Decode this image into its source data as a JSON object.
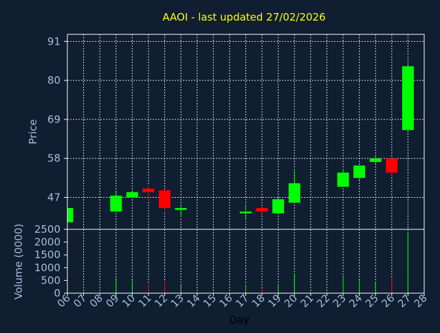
{
  "chart_data": {
    "type": "candlestick",
    "title": "AAOI - last updated 27/02/2026",
    "ylabel": "Price",
    "volume_label": "Volume (0000)",
    "xlabel": "Day",
    "ylim": [
      38,
      93
    ],
    "yticks": [
      47,
      58,
      69,
      80,
      91
    ],
    "volume_ylim": [
      0,
      2500
    ],
    "volume_yticks": [
      0,
      500,
      1000,
      1500,
      2000,
      2500
    ],
    "days": [
      "06",
      "07",
      "08",
      "09",
      "10",
      "11",
      "12",
      "13",
      "14",
      "15",
      "16",
      "17",
      "18",
      "19",
      "20",
      "21",
      "22",
      "23",
      "24",
      "25",
      "26",
      "27",
      "28"
    ],
    "grid": true,
    "colors": {
      "up": "#00ff00",
      "down": "#ff0000",
      "background": "#0f1e30",
      "title": "#ffff00",
      "axis": "#a3bfe0"
    },
    "candles": [
      {
        "day": "06",
        "open": 40.0,
        "high": 44.0,
        "low": 40.0,
        "close": 44.0,
        "volume": 0
      },
      {
        "day": "09",
        "open": 43.0,
        "high": 48.5,
        "low": 43.0,
        "close": 47.5,
        "volume": 600
      },
      {
        "day": "10",
        "open": 47.0,
        "high": 49.0,
        "low": 47.0,
        "close": 48.5,
        "volume": 500
      },
      {
        "day": "11",
        "open": 49.5,
        "high": 50.5,
        "low": 46.0,
        "close": 48.5,
        "volume": 350
      },
      {
        "day": "12",
        "open": 49.0,
        "high": 49.0,
        "low": 43.0,
        "close": 44.0,
        "volume": 450
      },
      {
        "day": "13",
        "open": 43.5,
        "high": 45.0,
        "low": 41.5,
        "close": 44.0,
        "volume": 300
      },
      {
        "day": "17",
        "open": 42.5,
        "high": 45.0,
        "low": 41.0,
        "close": 43.0,
        "volume": 350
      },
      {
        "day": "18",
        "open": 44.0,
        "high": 44.0,
        "low": 42.5,
        "close": 43.0,
        "volume": 200
      },
      {
        "day": "19",
        "open": 42.5,
        "high": 47.0,
        "low": 42.5,
        "close": 46.5,
        "volume": 350
      },
      {
        "day": "20",
        "open": 45.5,
        "high": 54.5,
        "low": 45.5,
        "close": 51.0,
        "volume": 780
      },
      {
        "day": "23",
        "open": 50.0,
        "high": 55.0,
        "low": 50.0,
        "close": 54.0,
        "volume": 700
      },
      {
        "day": "24",
        "open": 52.5,
        "high": 56.0,
        "low": 52.0,
        "close": 56.0,
        "volume": 500
      },
      {
        "day": "25",
        "open": 57.0,
        "high": 59.0,
        "low": 56.5,
        "close": 58.0,
        "volume": 400
      },
      {
        "day": "26",
        "open": 58.0,
        "high": 58.0,
        "low": 53.0,
        "close": 54.0,
        "volume": 600
      },
      {
        "day": "27",
        "open": 66.0,
        "high": 84.0,
        "low": 66.0,
        "close": 84.0,
        "volume": 2400
      }
    ]
  }
}
